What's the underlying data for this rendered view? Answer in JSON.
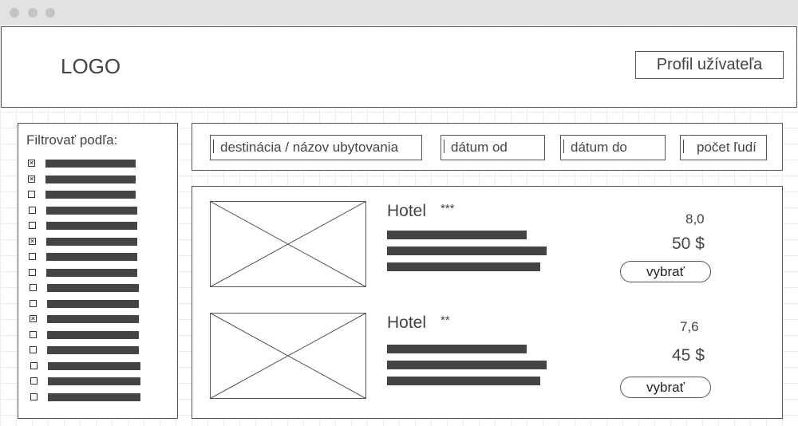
{
  "header": {
    "logo": "LOGO",
    "profile_label": "Profil užívateľa"
  },
  "sidebar": {
    "title": "Filtrovať podľa:",
    "filters": [
      {
        "checked": true
      },
      {
        "checked": true
      },
      {
        "checked": false
      },
      {
        "checked": false
      },
      {
        "checked": false
      },
      {
        "checked": true
      },
      {
        "checked": false
      },
      {
        "checked": false
      },
      {
        "checked": false
      },
      {
        "checked": false
      },
      {
        "checked": true
      },
      {
        "checked": false
      },
      {
        "checked": false
      },
      {
        "checked": false
      },
      {
        "checked": false
      },
      {
        "checked": false
      }
    ]
  },
  "search": {
    "destination_placeholder": "destinácia / názov ubytovania",
    "date_from_placeholder": "dátum od",
    "date_to_placeholder": "dátum do",
    "people_placeholder": "počet ľudí"
  },
  "results": [
    {
      "name": "Hotel",
      "stars": "***",
      "rating": "8,0",
      "price": "50 $",
      "select_label": "vybrať"
    },
    {
      "name": "Hotel",
      "stars": "**",
      "rating": "7,6",
      "price": "45 $",
      "select_label": "vybrať"
    }
  ]
}
